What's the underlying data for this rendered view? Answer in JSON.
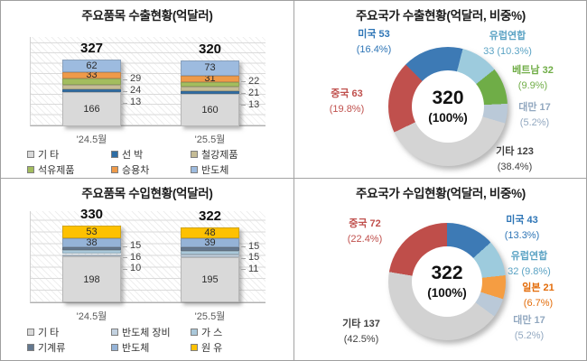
{
  "page": {
    "background": "#ffffff",
    "grid_border_color": "#a3a3a3"
  },
  "chart_data": [
    {
      "id": "export-by-item",
      "type": "bar",
      "title": "주요품목 수출현황(억달러)",
      "categories": [
        "'24.5월",
        "'25.5월"
      ],
      "totals": [
        327,
        320
      ],
      "axis_max": 400,
      "grid": true,
      "legend_position": "bottom",
      "series": [
        {
          "name": "기 타",
          "color": "#d9d9d9",
          "values": [
            166,
            160
          ],
          "label": "inside"
        },
        {
          "name": "선 박",
          "color": "#2e6da4",
          "values": [
            13,
            13
          ],
          "label": "callout"
        },
        {
          "name": "철강제품",
          "color": "#c5bc96",
          "values": [
            24,
            21
          ],
          "label": "callout"
        },
        {
          "name": "석유제품",
          "color": "#a3bd5e",
          "values": [
            29,
            22
          ],
          "label": "callout"
        },
        {
          "name": "승용차",
          "color": "#ef9a49",
          "values": [
            33,
            31
          ],
          "label": "inside"
        },
        {
          "name": "반도체",
          "color": "#9dbbdf",
          "values": [
            62,
            73
          ],
          "label": "inside"
        }
      ]
    },
    {
      "id": "export-by-country",
      "type": "donut",
      "title": "주요국가 수출현황(억달러, 비중%)",
      "center_value": "320",
      "center_pct": "(100%)",
      "start_angle": -45,
      "slices": [
        {
          "name": "미국",
          "value": 53,
          "pct": "16.4%",
          "color": "#3d7ab5",
          "label_color": "#2e75b6",
          "label_lines": [
            "미국 53",
            "(16.4%)"
          ]
        },
        {
          "name": "유럽연합",
          "value": 33,
          "pct": "10.3%",
          "color": "#9dcbdd",
          "label_color": "#5ba3c4",
          "label_lines": [
            "유럽연합",
            "33 (10.3%)"
          ]
        },
        {
          "name": "베트남",
          "value": 32,
          "pct": "9.9%",
          "color": "#6fad47",
          "label_color": "#70ad47",
          "label_lines": [
            "베트남 32",
            "(9.9%)"
          ]
        },
        {
          "name": "대만",
          "value": 17,
          "pct": "5.2%",
          "color": "#bac9d8",
          "label_color": "#92a8c0",
          "label_lines": [
            "대만 17",
            "(5.2%)"
          ]
        },
        {
          "name": "기타",
          "value": 123,
          "pct": "38.4%",
          "color": "#d4d4d4",
          "label_color": "#404040",
          "label_lines": [
            "기타 123",
            "(38.4%)"
          ]
        },
        {
          "name": "중국",
          "value": 63,
          "pct": "19.8%",
          "color": "#c0504d",
          "label_color": "#c0504d",
          "label_lines": [
            "중국 63",
            "(19.8%)"
          ]
        }
      ]
    },
    {
      "id": "import-by-item",
      "type": "bar",
      "title": "주요품목 수입현황(억달러)",
      "categories": [
        "'24.5월",
        "'25.5월"
      ],
      "totals": [
        330,
        322
      ],
      "axis_max": 350,
      "grid": true,
      "legend_position": "bottom",
      "series": [
        {
          "name": "기 타",
          "color": "#d9d9d9",
          "values": [
            198,
            195
          ],
          "label": "inside"
        },
        {
          "name": "반도체 장비",
          "color": "#c3d2e0",
          "values": [
            10,
            11
          ],
          "label": "callout"
        },
        {
          "name": "가 스",
          "color": "#aac8da",
          "values": [
            16,
            15
          ],
          "label": "callout"
        },
        {
          "name": "기계류",
          "color": "#64788f",
          "values": [
            15,
            15
          ],
          "label": "callout"
        },
        {
          "name": "반도체",
          "color": "#95b3d7",
          "values": [
            38,
            39
          ],
          "label": "inside"
        },
        {
          "name": "원 유",
          "color": "#fdc101",
          "values": [
            53,
            48
          ],
          "label": "inside"
        }
      ]
    },
    {
      "id": "import-by-country",
      "type": "donut",
      "title": "주요국가 수입현황(억달러, 비중%)",
      "center_value": "322",
      "center_pct": "(100%)",
      "start_angle": 0,
      "slices": [
        {
          "name": "미국",
          "value": 43,
          "pct": "13.3%",
          "color": "#3d7ab5",
          "label_color": "#2e75b6",
          "label_lines": [
            "미국 43",
            "(13.3%)"
          ]
        },
        {
          "name": "유럽연합",
          "value": 32,
          "pct": "9.8%",
          "color": "#9dcbdd",
          "label_color": "#5ba3c4",
          "label_lines": [
            "유럽연합",
            "32 (9.8%)"
          ]
        },
        {
          "name": "일본",
          "value": 21,
          "pct": "6.7%",
          "color": "#f59d42",
          "label_color": "#e36c09",
          "label_lines": [
            "일본 21",
            "(6.7%)"
          ]
        },
        {
          "name": "대만",
          "value": 17,
          "pct": "5.2%",
          "color": "#bac9d8",
          "label_color": "#92a8c0",
          "label_lines": [
            "대만 17",
            "(5.2%)"
          ]
        },
        {
          "name": "기타",
          "value": 137,
          "pct": "42.5%",
          "color": "#d2d2d2",
          "label_color": "#404040",
          "label_lines": [
            "기타 137",
            "(42.5%)"
          ]
        },
        {
          "name": "중국",
          "value": 72,
          "pct": "22.4%",
          "color": "#bf4e4a",
          "label_color": "#c0504d",
          "label_lines": [
            "중국 72",
            "(22.4%)"
          ]
        }
      ]
    }
  ]
}
